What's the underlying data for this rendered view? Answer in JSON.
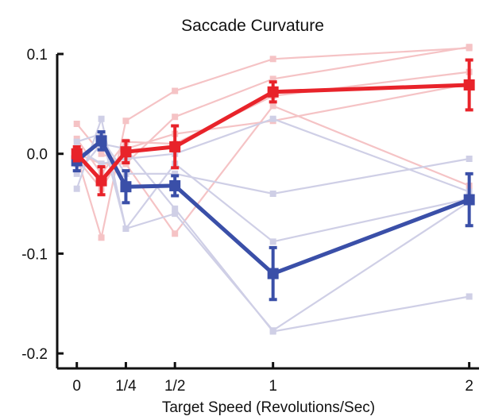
{
  "chart_data": {
    "type": "line",
    "title": "Saccade Curvature",
    "xlabel": "Target Speed (Revolutions/Sec)",
    "ylabel": "",
    "x_ticks": [
      {
        "value": 0,
        "label": "0"
      },
      {
        "value": 0.25,
        "label": "1/4"
      },
      {
        "value": 0.5,
        "label": "1/2"
      },
      {
        "value": 1,
        "label": "1"
      },
      {
        "value": 2,
        "label": "2"
      }
    ],
    "y_ticks": [
      {
        "value": 0.1,
        "label": "0.1"
      },
      {
        "value": 0.0,
        "label": "0.0"
      },
      {
        "value": -0.1,
        "label": "-0.1"
      },
      {
        "value": -0.2,
        "label": "-0.2"
      }
    ],
    "xlim": [
      -0.1,
      2.05
    ],
    "ylim": [
      -0.215,
      0.1
    ],
    "x": [
      0,
      0.125,
      0.25,
      0.5,
      1,
      2
    ],
    "colors": {
      "red": "#e8232a",
      "blue": "#3a4fa8",
      "red_light": "#f5c3c5",
      "blue_light": "#cfcfe6",
      "axis": "#111111"
    },
    "series": [
      {
        "color": "red",
        "values": [
          0.0,
          -0.027,
          0.002,
          0.007,
          0.062,
          0.069
        ],
        "err": [
          0.007,
          0.014,
          0.011,
          0.021,
          0.01,
          0.025
        ]
      },
      {
        "color": "blue",
        "values": [
          -0.007,
          0.013,
          -0.033,
          -0.032,
          -0.12,
          -0.046
        ],
        "err": [
          0.01,
          0.009,
          0.016,
          0.01,
          0.026,
          0.026
        ]
      }
    ],
    "individual_series": [
      {
        "color": "red_light",
        "values": [
          -0.002,
          -0.084,
          0.033,
          0.063,
          0.095,
          0.106
        ]
      },
      {
        "color": "red_light",
        "values": [
          0.03,
          0.0,
          -0.01,
          0.037,
          0.075,
          0.107
        ]
      },
      {
        "color": "red_light",
        "values": [
          0.015,
          -0.02,
          0.012,
          0.01,
          0.058,
          0.082
        ]
      },
      {
        "color": "red_light",
        "values": [
          0.0,
          -0.01,
          -0.01,
          -0.08,
          0.048,
          -0.032
        ]
      },
      {
        "color": "red_light",
        "values": [
          -0.005,
          -0.035,
          0.005,
          0.02,
          0.033,
          0.07
        ]
      },
      {
        "color": "blue_light",
        "values": [
          -0.035,
          0.035,
          -0.075,
          -0.01,
          -0.088,
          -0.045
        ]
      },
      {
        "color": "blue_light",
        "values": [
          0.012,
          0.02,
          -0.075,
          -0.06,
          -0.177,
          -0.048
        ]
      },
      {
        "color": "blue_light",
        "values": [
          -0.02,
          0.01,
          0.005,
          -0.055,
          -0.178,
          -0.143
        ]
      },
      {
        "color": "blue_light",
        "values": [
          -0.01,
          0.015,
          -0.02,
          -0.02,
          -0.04,
          -0.005
        ]
      },
      {
        "color": "blue_light",
        "values": [
          0.005,
          -0.01,
          -0.005,
          0.0,
          0.035,
          -0.038
        ]
      }
    ]
  }
}
